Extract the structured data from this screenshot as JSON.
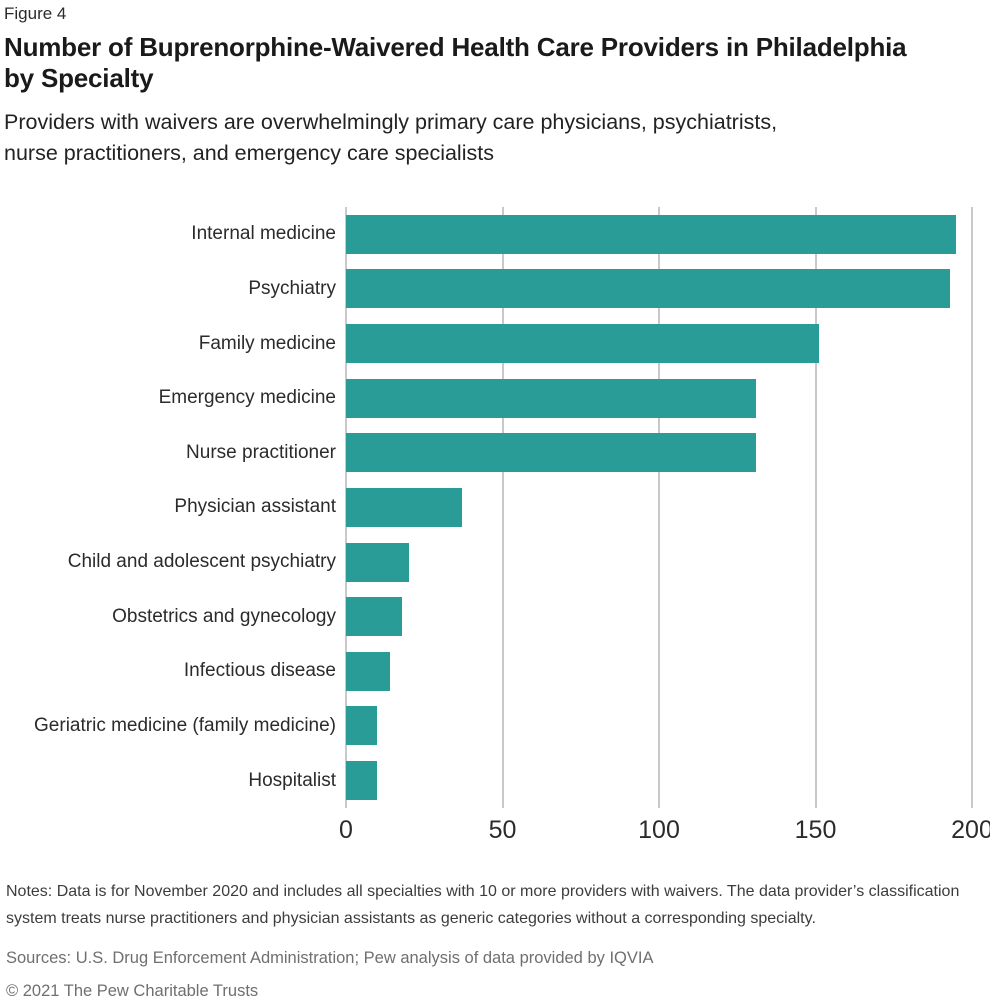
{
  "header": {
    "figure_label": "Figure 4",
    "title": "Number of Buprenorphine-Waivered Health Care Providers in Philadelphia by Specialty",
    "subtitle": "Providers with waivers are overwhelmingly primary care physicians, psychiatrists, nurse practitioners, and emergency care specialists"
  },
  "chart_data": {
    "type": "bar",
    "orientation": "horizontal",
    "categories": [
      "Internal medicine",
      "Psychiatry",
      "Family medicine",
      "Emergency medicine",
      "Nurse practitioner",
      "Physician assistant",
      "Child and adolescent psychiatry",
      "Obstetrics and gynecology",
      "Infectious disease",
      "Geriatric medicine (family medicine)",
      "Hospitalist"
    ],
    "values": [
      195,
      193,
      151,
      131,
      131,
      37,
      20,
      18,
      14,
      10,
      10
    ],
    "xlim": [
      0,
      200
    ],
    "xticks": [
      0,
      50,
      100,
      150,
      200
    ],
    "xlabel": "",
    "ylabel": "",
    "grid": true,
    "legend": false,
    "bar_color": "#2a9c98",
    "gridline_color": "#c9c9c9"
  },
  "footer": {
    "notes": "Notes: Data is for November 2020 and includes all specialties with 10 or more providers with waivers. The data provider’s classification system treats nurse practitioners and physician assistants as generic categories without a corresponding specialty.",
    "sources": "Sources: U.S. Drug Enforcement Administration; Pew analysis of data provided by IQVIA",
    "copyright": "© 2021 The Pew Charitable Trusts"
  }
}
